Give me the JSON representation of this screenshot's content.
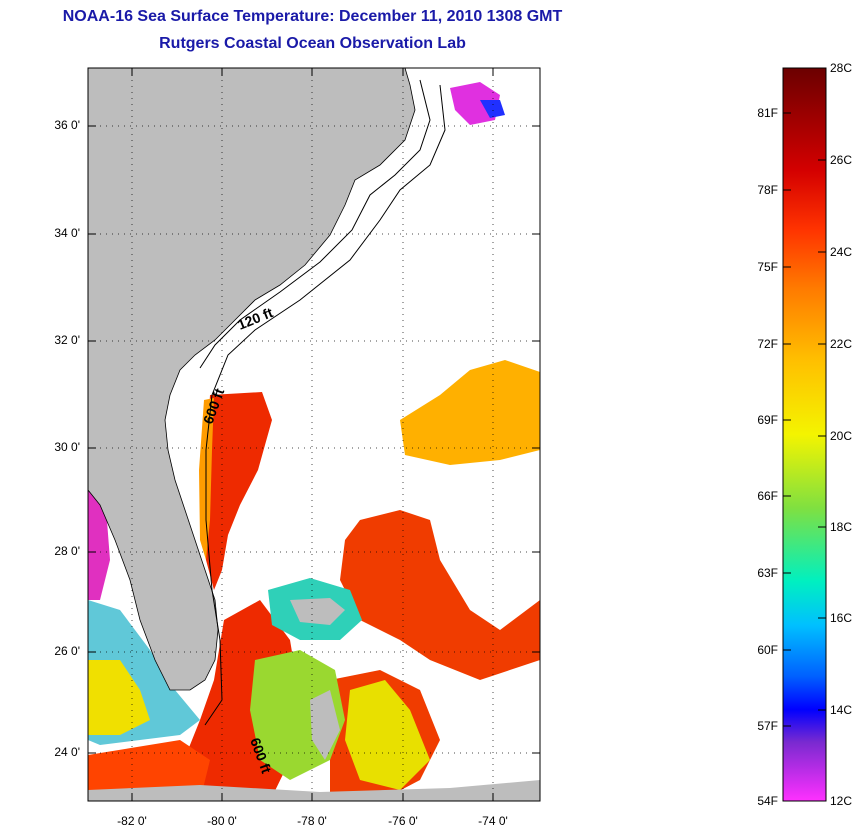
{
  "title": "NOAA-16 Sea Surface Temperature:  December 11, 2010 1308 GMT",
  "subtitle": "Rutgers Coastal Ocean Observation Lab",
  "map": {
    "lon_range": [
      -83,
      -73
    ],
    "lat_range": [
      23,
      37
    ],
    "lat_ticks": [
      "36 0'",
      "34 0'",
      "32 0'",
      "30 0'",
      "28 0'",
      "26 0'",
      "24 0'"
    ],
    "lon_ticks": [
      "-82 0'",
      "-80 0'",
      "-78 0'",
      "-76 0'",
      "-74 0'"
    ],
    "isobath_labels": [
      "120 ft",
      "600 ft",
      "600 ft"
    ],
    "land_color": "#bdbdbd",
    "grid": "dotted"
  },
  "colorbar": {
    "celsius_labels": [
      "28C",
      "26C",
      "24C",
      "22C",
      "20C",
      "18C",
      "16C",
      "14C",
      "12C"
    ],
    "fahrenheit_labels": [
      "81F",
      "78F",
      "75F",
      "72F",
      "69F",
      "66F",
      "63F",
      "60F",
      "57F",
      "54F"
    ],
    "colors": [
      "#6b0000",
      "#d40000",
      "#ff3300",
      "#ff7a00",
      "#ffc000",
      "#f4f400",
      "#80e040",
      "#00f0c0",
      "#00c0ff",
      "#0060ff",
      "#0000ff",
      "#7a2ad0",
      "#ff30ff"
    ]
  }
}
